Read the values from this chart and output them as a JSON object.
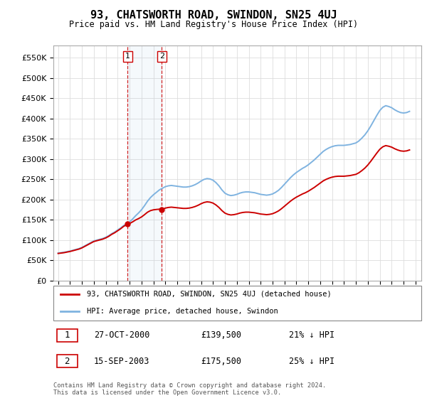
{
  "title": "93, CHATSWORTH ROAD, SWINDON, SN25 4UJ",
  "subtitle": "Price paid vs. HM Land Registry's House Price Index (HPI)",
  "ytick_values": [
    0,
    50000,
    100000,
    150000,
    200000,
    250000,
    300000,
    350000,
    400000,
    450000,
    500000,
    550000
  ],
  "ylim": [
    0,
    580000
  ],
  "hpi_color": "#7fb3e0",
  "price_color": "#cc0000",
  "sale1_x": 2000.83,
  "sale1_price": 139500,
  "sale2_x": 2003.71,
  "sale2_price": 175500,
  "legend_entry1": "93, CHATSWORTH ROAD, SWINDON, SN25 4UJ (detached house)",
  "legend_entry2": "HPI: Average price, detached house, Swindon",
  "footnote": "Contains HM Land Registry data © Crown copyright and database right 2024.\nThis data is licensed under the Open Government Licence v3.0.",
  "table_row1": [
    "1",
    "27-OCT-2000",
    "£139,500",
    "21% ↓ HPI"
  ],
  "table_row2": [
    "2",
    "15-SEP-2003",
    "£175,500",
    "25% ↓ HPI"
  ],
  "hpi_x": [
    1995.0,
    1995.25,
    1995.5,
    1995.75,
    1996.0,
    1996.25,
    1996.5,
    1996.75,
    1997.0,
    1997.25,
    1997.5,
    1997.75,
    1998.0,
    1998.25,
    1998.5,
    1998.75,
    1999.0,
    1999.25,
    1999.5,
    1999.75,
    2000.0,
    2000.25,
    2000.5,
    2000.75,
    2001.0,
    2001.25,
    2001.5,
    2001.75,
    2002.0,
    2002.25,
    2002.5,
    2002.75,
    2003.0,
    2003.25,
    2003.5,
    2003.75,
    2004.0,
    2004.25,
    2004.5,
    2004.75,
    2005.0,
    2005.25,
    2005.5,
    2005.75,
    2006.0,
    2006.25,
    2006.5,
    2006.75,
    2007.0,
    2007.25,
    2007.5,
    2007.75,
    2008.0,
    2008.25,
    2008.5,
    2008.75,
    2009.0,
    2009.25,
    2009.5,
    2009.75,
    2010.0,
    2010.25,
    2010.5,
    2010.75,
    2011.0,
    2011.25,
    2011.5,
    2011.75,
    2012.0,
    2012.25,
    2012.5,
    2012.75,
    2013.0,
    2013.25,
    2013.5,
    2013.75,
    2014.0,
    2014.25,
    2014.5,
    2014.75,
    2015.0,
    2015.25,
    2015.5,
    2015.75,
    2016.0,
    2016.25,
    2016.5,
    2016.75,
    2017.0,
    2017.25,
    2017.5,
    2017.75,
    2018.0,
    2018.25,
    2018.5,
    2018.75,
    2019.0,
    2019.25,
    2019.5,
    2019.75,
    2020.0,
    2020.25,
    2020.5,
    2020.75,
    2021.0,
    2021.25,
    2021.5,
    2021.75,
    2022.0,
    2022.25,
    2022.5,
    2022.75,
    2023.0,
    2023.25,
    2023.5,
    2023.75,
    2024.0,
    2024.25,
    2024.5
  ],
  "hpi_y": [
    68000,
    69000,
    70000,
    71500,
    73000,
    75000,
    77000,
    79000,
    82000,
    86000,
    90000,
    94000,
    98000,
    100000,
    102000,
    104000,
    107000,
    111000,
    116000,
    120000,
    125000,
    130000,
    136000,
    140000,
    145000,
    152000,
    160000,
    167000,
    175000,
    185000,
    196000,
    205000,
    212000,
    218000,
    224000,
    228000,
    232000,
    234000,
    235000,
    234000,
    233000,
    232000,
    231000,
    231000,
    232000,
    234000,
    237000,
    241000,
    246000,
    250000,
    252000,
    251000,
    248000,
    242000,
    234000,
    224000,
    216000,
    212000,
    210000,
    211000,
    213000,
    216000,
    218000,
    219000,
    219000,
    218000,
    217000,
    215000,
    213000,
    212000,
    211000,
    212000,
    214000,
    218000,
    223000,
    230000,
    238000,
    246000,
    254000,
    261000,
    267000,
    272000,
    277000,
    281000,
    286000,
    292000,
    298000,
    305000,
    312000,
    319000,
    324000,
    328000,
    331000,
    333000,
    334000,
    334000,
    334000,
    335000,
    336000,
    338000,
    340000,
    345000,
    352000,
    360000,
    370000,
    382000,
    395000,
    408000,
    420000,
    428000,
    432000,
    430000,
    427000,
    422000,
    418000,
    415000,
    414000,
    415000,
    418000
  ]
}
